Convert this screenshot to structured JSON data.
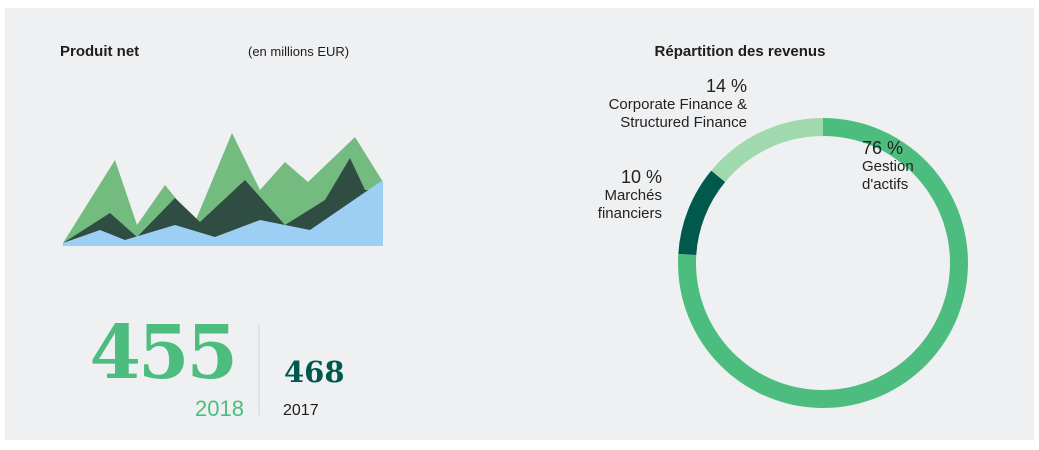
{
  "header": {
    "title": "Produit net",
    "unit": "(en millions EUR)"
  },
  "figures": {
    "current": {
      "value": 455,
      "year": "2018"
    },
    "previous": {
      "value": 468,
      "year": "2017"
    }
  },
  "chart_data": {
    "type": "donut",
    "title": "Répartition des revenus",
    "categories": [
      "Gestion d'actifs",
      "Marchés financiers",
      "Corporate Finance & Structured Finance"
    ],
    "values": [
      76,
      10,
      14
    ],
    "value_labels": [
      "76 %",
      "10 %",
      "14 %"
    ],
    "colors": [
      "#4dbd7f",
      "#00594c",
      "#a0d9ad"
    ]
  }
}
